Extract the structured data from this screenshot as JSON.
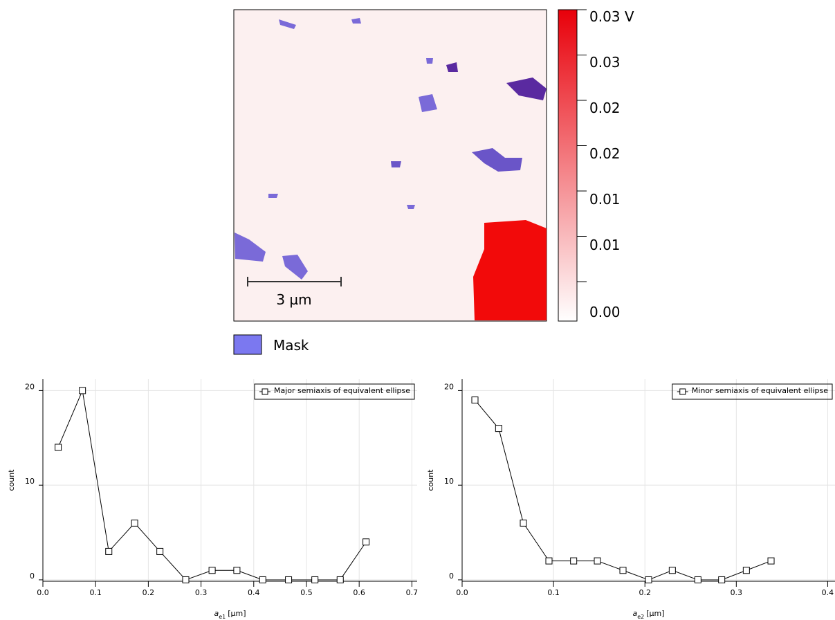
{
  "image": {
    "scale_bar": "3 µm",
    "mask_legend": "Mask",
    "colorbar": {
      "labels": [
        "0.03 V",
        "0.03",
        "0.02",
        "0.02",
        "0.01",
        "0.01",
        "0.00"
      ]
    }
  },
  "chart_data": [
    {
      "type": "line",
      "ylabel": "count",
      "xlabel": {
        "symbol": "a",
        "subscript": "e1",
        "unit": "[µm]"
      },
      "x": [
        0.029,
        0.075,
        0.125,
        0.174,
        0.222,
        0.271,
        0.321,
        0.368,
        0.417,
        0.466,
        0.516,
        0.564,
        0.613
      ],
      "series": [
        {
          "name": "Major semiaxis of equivalent ellipse",
          "color": "#000000",
          "values": [
            14,
            20,
            3,
            6,
            3,
            0,
            1,
            1,
            0,
            0,
            0,
            0,
            4
          ]
        }
      ],
      "xlim": [
        0,
        0.71
      ],
      "xticks": [
        {
          "value": 0,
          "label": "0.0"
        },
        0.1,
        0.2,
        0.3,
        0.4,
        0.5,
        0.6,
        0.7
      ],
      "ylim": [
        -0.15,
        21.2
      ],
      "yticks": [
        0,
        10,
        20
      ],
      "grid": true,
      "legend": "top-right"
    },
    {
      "type": "line",
      "ylabel": "count",
      "xlabel": {
        "symbol": "a",
        "subscript": "e2",
        "unit": "[µm]"
      },
      "x": [
        0.014,
        0.04,
        0.067,
        0.095,
        0.122,
        0.148,
        0.176,
        0.204,
        0.23,
        0.258,
        0.284,
        0.311,
        0.338
      ],
      "series": [
        {
          "name": "Minor semiaxis of equivalent ellipse",
          "color": "#000000",
          "values": [
            19,
            16,
            6,
            2,
            2,
            2,
            1,
            0,
            1,
            0,
            0,
            1,
            2
          ]
        }
      ],
      "xlim": [
        0,
        0.408
      ],
      "xticks": [
        {
          "value": 0,
          "label": "0.0"
        },
        0.1,
        0.2,
        0.3,
        0.4
      ],
      "ylim": [
        -0.15,
        21.2
      ],
      "yticks": [
        0,
        10,
        20
      ],
      "grid": true,
      "legend": "top-right"
    }
  ]
}
